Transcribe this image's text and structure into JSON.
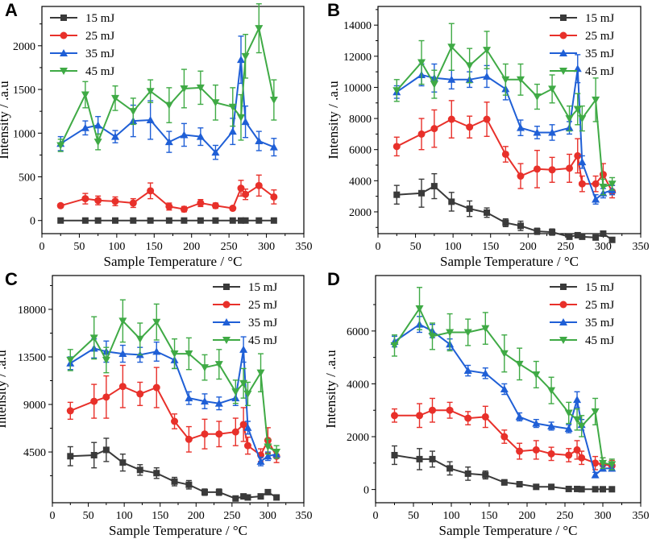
{
  "colors": {
    "15 mJ": "#3a3a3a",
    "25 mJ": "#e8302a",
    "35 mJ": "#1f5fd6",
    "45 mJ": "#3faa45"
  },
  "chart_data": [
    {
      "panel": "A",
      "type": "line",
      "xlabel": "Sample Temperature / °C",
      "ylabel": "Intensity / .a.u",
      "xlim": [
        0,
        350
      ],
      "ylim": [
        -150,
        2450
      ],
      "xticks": [
        0,
        50,
        100,
        150,
        200,
        250,
        300,
        350
      ],
      "yticks": [
        0,
        500,
        1000,
        1500,
        2000
      ],
      "ytick_labels": [
        "0",
        "500",
        "1000",
        "1500",
        "2000"
      ],
      "legend": "top-left",
      "series": [
        {
          "name": "15 mJ",
          "marker": "square",
          "x": [
            25,
            58,
            75,
            98,
            122,
            145,
            170,
            190,
            212,
            232,
            255,
            266,
            272,
            290,
            310
          ],
          "y": [
            0,
            0,
            0,
            0,
            0,
            0,
            0,
            0,
            0,
            0,
            0,
            0,
            0,
            0,
            0
          ],
          "err": [
            5,
            5,
            5,
            5,
            5,
            5,
            5,
            5,
            5,
            5,
            5,
            5,
            5,
            5,
            5
          ]
        },
        {
          "name": "25 mJ",
          "marker": "circle",
          "x": [
            25,
            58,
            75,
            98,
            122,
            145,
            170,
            190,
            212,
            232,
            255,
            266,
            272,
            290,
            310
          ],
          "y": [
            170,
            250,
            230,
            220,
            200,
            340,
            160,
            130,
            200,
            170,
            140,
            370,
            300,
            400,
            270
          ],
          "err": [
            20,
            60,
            50,
            50,
            50,
            90,
            40,
            30,
            40,
            30,
            20,
            90,
            60,
            120,
            80
          ]
        },
        {
          "name": "35 mJ",
          "marker": "triangle-up",
          "x": [
            25,
            58,
            75,
            98,
            122,
            145,
            170,
            190,
            212,
            232,
            255,
            266,
            272,
            290,
            310
          ],
          "y": [
            880,
            1060,
            1090,
            960,
            1140,
            1150,
            900,
            980,
            960,
            780,
            1020,
            1840,
            1130,
            910,
            840
          ],
          "err": [
            80,
            80,
            100,
            70,
            180,
            220,
            120,
            130,
            100,
            80,
            150,
            270,
            180,
            110,
            100
          ]
        },
        {
          "name": "45 mJ",
          "marker": "triangle-down",
          "x": [
            25,
            58,
            75,
            98,
            122,
            145,
            170,
            190,
            212,
            232,
            255,
            266,
            272,
            290,
            310
          ],
          "y": [
            860,
            1440,
            900,
            1400,
            1250,
            1480,
            1320,
            1510,
            1520,
            1350,
            1300,
            1180,
            1880,
            2200,
            1380
          ],
          "err": [
            70,
            150,
            90,
            140,
            150,
            130,
            200,
            220,
            190,
            200,
            220,
            260,
            250,
            280,
            230
          ]
        }
      ]
    },
    {
      "panel": "B",
      "type": "line",
      "xlabel": "Sample Temperature / °C",
      "ylabel": "Intensity / .a.u",
      "xlim": [
        0,
        350
      ],
      "ylim": [
        600,
        15200
      ],
      "xticks": [
        0,
        50,
        100,
        150,
        200,
        250,
        300,
        350
      ],
      "yticks": [
        2000,
        4000,
        6000,
        8000,
        10000,
        12000,
        14000
      ],
      "ytick_labels": [
        "2000",
        "4000",
        "6000",
        "8000",
        "10000",
        "12000",
        "14000"
      ],
      "legend": "top-right",
      "series": [
        {
          "name": "15 mJ",
          "marker": "square",
          "x": [
            25,
            58,
            75,
            98,
            122,
            145,
            170,
            190,
            212,
            232,
            255,
            266,
            272,
            290,
            300,
            312
          ],
          "y": [
            3100,
            3200,
            3650,
            2650,
            2200,
            1950,
            1300,
            1100,
            750,
            700,
            400,
            500,
            400,
            350,
            600,
            200
          ],
          "err": [
            600,
            900,
            800,
            600,
            500,
            300,
            250,
            300,
            200,
            200,
            100,
            100,
            100,
            100,
            100,
            80
          ]
        },
        {
          "name": "25 mJ",
          "marker": "circle",
          "x": [
            25,
            58,
            75,
            98,
            122,
            145,
            170,
            190,
            212,
            232,
            255,
            266,
            272,
            290,
            300,
            312
          ],
          "y": [
            6200,
            7000,
            7350,
            7950,
            7450,
            7950,
            5700,
            4300,
            4750,
            4700,
            4800,
            5600,
            3800,
            3800,
            4400,
            3300
          ],
          "err": [
            600,
            1000,
            1200,
            1200,
            700,
            1100,
            500,
            800,
            1200,
            800,
            900,
            1100,
            500,
            500,
            700,
            400
          ]
        },
        {
          "name": "35 mJ",
          "marker": "triangle-up",
          "x": [
            25,
            58,
            75,
            98,
            122,
            145,
            170,
            190,
            212,
            232,
            255,
            266,
            272,
            290,
            300,
            312
          ],
          "y": [
            9700,
            10800,
            10600,
            10500,
            10500,
            10700,
            9900,
            7400,
            7100,
            7100,
            7400,
            11200,
            5200,
            2800,
            3200,
            3400
          ],
          "err": [
            400,
            700,
            900,
            600,
            500,
            700,
            700,
            500,
            400,
            500,
            400,
            900,
            400,
            300,
            300,
            300
          ]
        },
        {
          "name": "45 mJ",
          "marker": "triangle-down",
          "x": [
            25,
            58,
            75,
            98,
            122,
            145,
            170,
            190,
            212,
            232,
            255,
            266,
            272,
            290,
            300,
            312
          ],
          "y": [
            9800,
            11600,
            10200,
            12600,
            11400,
            12400,
            10500,
            10500,
            9400,
            9900,
            8000,
            8600,
            8000,
            9200,
            3600,
            3800
          ],
          "err": [
            700,
            1400,
            900,
            1500,
            1100,
            1200,
            1000,
            1000,
            800,
            900,
            800,
            1000,
            800,
            1400,
            500,
            400
          ]
        }
      ]
    },
    {
      "panel": "C",
      "type": "line",
      "xlabel": "Sample Temperature / °C",
      "ylabel": "Intensity / .a.u",
      "xlim": [
        0,
        350
      ],
      "ylim": [
        -300,
        21200
      ],
      "xticks": [
        0,
        50,
        100,
        150,
        200,
        250,
        300,
        350
      ],
      "yticks": [
        4500,
        9000,
        13500,
        18000
      ],
      "ytick_labels": [
        "4500",
        "9000",
        "13500",
        "18000"
      ],
      "legend": "top-right",
      "series": [
        {
          "name": "15 mJ",
          "marker": "square",
          "x": [
            25,
            58,
            75,
            98,
            122,
            145,
            170,
            190,
            212,
            232,
            255,
            266,
            272,
            290,
            300,
            312
          ],
          "y": [
            4100,
            4200,
            4700,
            3500,
            2800,
            2500,
            1700,
            1400,
            700,
            700,
            100,
            300,
            200,
            300,
            700,
            200
          ],
          "err": [
            900,
            1200,
            1100,
            800,
            500,
            500,
            400,
            400,
            300,
            300,
            100,
            100,
            100,
            100,
            200,
            100
          ]
        },
        {
          "name": "25 mJ",
          "marker": "circle",
          "x": [
            25,
            58,
            75,
            98,
            122,
            145,
            170,
            190,
            212,
            232,
            255,
            266,
            272,
            290,
            300,
            312
          ],
          "y": [
            8400,
            9300,
            9700,
            10700,
            10000,
            10600,
            7400,
            5700,
            6200,
            6200,
            6400,
            7100,
            5100,
            4200,
            5600,
            4100
          ],
          "err": [
            800,
            1600,
            2000,
            2000,
            1100,
            1900,
            700,
            1200,
            1400,
            1200,
            1300,
            1600,
            800,
            600,
            1200,
            600
          ]
        },
        {
          "name": "35 mJ",
          "marker": "triangle-up",
          "x": [
            25,
            58,
            75,
            98,
            122,
            145,
            170,
            190,
            212,
            232,
            255,
            266,
            272,
            290,
            300,
            312
          ],
          "y": [
            12900,
            14300,
            14000,
            13800,
            13700,
            14000,
            13200,
            9600,
            9300,
            9100,
            9600,
            14200,
            6800,
            3600,
            4100,
            4300
          ],
          "err": [
            600,
            900,
            1000,
            800,
            700,
            900,
            800,
            600,
            700,
            600,
            700,
            1200,
            600,
            400,
            400,
            400
          ]
        },
        {
          "name": "45 mJ",
          "marker": "triangle-down",
          "x": [
            25,
            58,
            75,
            98,
            122,
            145,
            170,
            190,
            212,
            232,
            255,
            266,
            272,
            290,
            300,
            312
          ],
          "y": [
            13200,
            15300,
            13200,
            16900,
            15200,
            16800,
            13800,
            13800,
            12500,
            12800,
            10200,
            11000,
            10000,
            12000,
            5000,
            4500
          ],
          "err": [
            1000,
            2000,
            1200,
            2000,
            1500,
            1700,
            1400,
            1500,
            1200,
            1400,
            1100,
            1400,
            1100,
            1800,
            700,
            600
          ]
        }
      ]
    },
    {
      "panel": "D",
      "type": "line",
      "xlabel": "Sample Temperature / °C",
      "ylabel": "Intensity / .a.u",
      "xlim": [
        0,
        350
      ],
      "ylim": [
        -500,
        8100
      ],
      "xticks": [
        0,
        50,
        100,
        150,
        200,
        250,
        300,
        350
      ],
      "yticks": [
        0,
        2000,
        4000,
        6000
      ],
      "ytick_labels": [
        "0",
        "2000",
        "4000",
        "6000"
      ],
      "legend": "top-right",
      "series": [
        {
          "name": "15 mJ",
          "marker": "square",
          "x": [
            25,
            58,
            75,
            98,
            122,
            145,
            170,
            190,
            212,
            232,
            255,
            266,
            272,
            290,
            300,
            312
          ],
          "y": [
            1300,
            1150,
            1150,
            800,
            600,
            550,
            270,
            200,
            100,
            100,
            20,
            20,
            10,
            10,
            10,
            10
          ],
          "err": [
            350,
            400,
            300,
            250,
            250,
            150,
            100,
            80,
            50,
            50,
            20,
            20,
            20,
            20,
            20,
            20
          ]
        },
        {
          "name": "25 mJ",
          "marker": "circle",
          "x": [
            25,
            58,
            75,
            98,
            122,
            145,
            170,
            190,
            212,
            232,
            255,
            266,
            272,
            290,
            300,
            312
          ],
          "y": [
            2800,
            2800,
            3000,
            3000,
            2700,
            2750,
            2000,
            1450,
            1500,
            1350,
            1300,
            1500,
            1200,
            1000,
            950,
            900
          ],
          "err": [
            250,
            450,
            450,
            300,
            250,
            400,
            250,
            300,
            350,
            250,
            250,
            350,
            250,
            250,
            250,
            200
          ]
        },
        {
          "name": "35 mJ",
          "marker": "triangle-up",
          "x": [
            25,
            58,
            75,
            98,
            122,
            145,
            170,
            190,
            212,
            232,
            255,
            266,
            272,
            290,
            300,
            312
          ],
          "y": [
            5600,
            6250,
            6000,
            5500,
            4500,
            4400,
            3800,
            2750,
            2500,
            2400,
            2300,
            3400,
            2450,
            550,
            800,
            800
          ],
          "err": [
            200,
            300,
            250,
            200,
            200,
            200,
            200,
            150,
            150,
            150,
            150,
            300,
            200,
            100,
            100,
            100
          ]
        },
        {
          "name": "45 mJ",
          "marker": "triangle-down",
          "x": [
            25,
            58,
            75,
            98,
            122,
            145,
            170,
            190,
            212,
            232,
            255,
            266,
            272,
            290,
            300,
            312
          ],
          "y": [
            5450,
            6850,
            5800,
            5950,
            5950,
            6100,
            5150,
            4750,
            4350,
            3750,
            2900,
            2650,
            2400,
            2950,
            1000,
            950
          ],
          "err": [
            400,
            800,
            500,
            700,
            500,
            600,
            700,
            600,
            500,
            500,
            400,
            400,
            400,
            500,
            200,
            200
          ]
        }
      ]
    }
  ]
}
